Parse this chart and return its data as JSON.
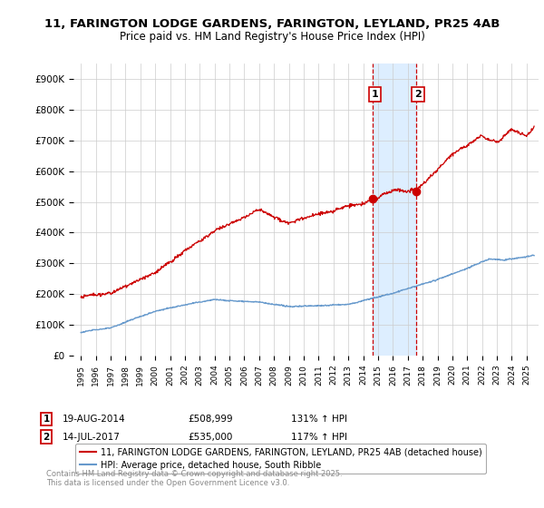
{
  "title_line1": "11, FARINGTON LODGE GARDENS, FARINGTON, LEYLAND, PR25 4AB",
  "title_line2": "Price paid vs. HM Land Registry's House Price Index (HPI)",
  "ylim": [
    0,
    950000
  ],
  "yticks": [
    0,
    100000,
    200000,
    300000,
    400000,
    500000,
    600000,
    700000,
    800000,
    900000
  ],
  "ytick_labels": [
    "£0",
    "£100K",
    "£200K",
    "£300K",
    "£400K",
    "£500K",
    "£600K",
    "£700K",
    "£800K",
    "£900K"
  ],
  "sale1_date": 2014.64,
  "sale1_price": 508999,
  "sale2_date": 2017.54,
  "sale2_price": 535000,
  "legend_label_red": "11, FARINGTON LODGE GARDENS, FARINGTON, LEYLAND, PR25 4AB (detached house)",
  "legend_label_blue": "HPI: Average price, detached house, South Ribble",
  "red_color": "#cc0000",
  "blue_color": "#6699cc",
  "shade_color": "#ddeeff",
  "grid_color": "#cccccc",
  "background_color": "#ffffff",
  "xlim_left": 1994.5,
  "xlim_right": 2025.8,
  "x_tick_years": [
    1995,
    1996,
    1997,
    1998,
    1999,
    2000,
    2001,
    2002,
    2003,
    2004,
    2005,
    2006,
    2007,
    2008,
    2009,
    2010,
    2011,
    2012,
    2013,
    2014,
    2015,
    2016,
    2017,
    2018,
    2019,
    2020,
    2021,
    2022,
    2023,
    2024,
    2025
  ]
}
